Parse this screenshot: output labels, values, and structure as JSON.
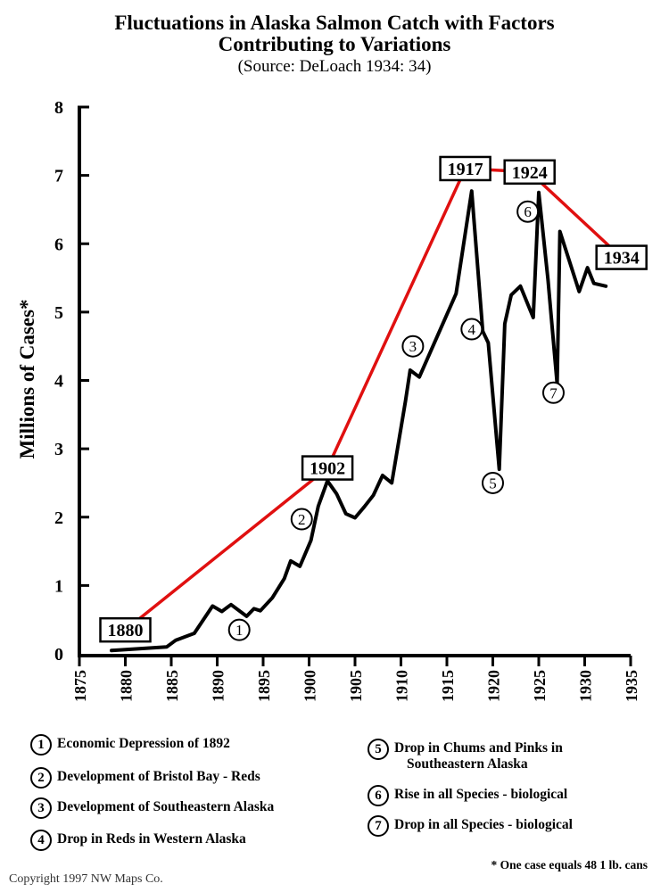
{
  "header": {
    "title_line1": "Fluctuations in Alaska Salmon Catch with Factors",
    "title_line2": "Contributing to Variations",
    "subtitle": "(Source: DeLoach 1934: 34)"
  },
  "chart_data": {
    "type": "line",
    "ylabel": "Millions of Cases*",
    "xlim": [
      1875,
      1935
    ],
    "ylim": [
      0,
      8
    ],
    "x_ticks": [
      1875,
      1880,
      1885,
      1890,
      1895,
      1900,
      1905,
      1910,
      1915,
      1920,
      1925,
      1930,
      1935
    ],
    "y_ticks": [
      0,
      1,
      2,
      3,
      4,
      5,
      6,
      7,
      8
    ],
    "series": [
      {
        "color": "#000000",
        "points": [
          [
            1878.5,
            0.05
          ],
          [
            1884.5,
            0.1
          ],
          [
            1885.5,
            0.2
          ],
          [
            1887.5,
            0.3
          ],
          [
            1889.5,
            0.7
          ],
          [
            1890.5,
            0.62
          ],
          [
            1891.5,
            0.72
          ],
          [
            1893.2,
            0.55
          ],
          [
            1894,
            0.66
          ],
          [
            1894.7,
            0.63
          ],
          [
            1896,
            0.82
          ],
          [
            1897.3,
            1.1
          ],
          [
            1898,
            1.36
          ],
          [
            1899,
            1.28
          ],
          [
            1900.2,
            1.66
          ],
          [
            1901,
            2.16
          ],
          [
            1902,
            2.53
          ],
          [
            1903,
            2.34
          ],
          [
            1904,
            2.05
          ],
          [
            1905,
            1.99
          ],
          [
            1906,
            2.15
          ],
          [
            1907,
            2.32
          ],
          [
            1908,
            2.61
          ],
          [
            1909,
            2.5
          ],
          [
            1910.5,
            3.7
          ],
          [
            1911,
            4.15
          ],
          [
            1912,
            4.05
          ],
          [
            1916,
            5.27
          ],
          [
            1917.7,
            6.77
          ],
          [
            1918.9,
            4.72
          ],
          [
            1919.5,
            4.55
          ],
          [
            1920.7,
            2.7
          ],
          [
            1921.3,
            4.83
          ],
          [
            1922,
            5.25
          ],
          [
            1923,
            5.38
          ],
          [
            1924.4,
            4.92
          ],
          [
            1925,
            6.75
          ],
          [
            1926,
            5.48
          ],
          [
            1927,
            3.95
          ],
          [
            1927.3,
            6.18
          ],
          [
            1929.4,
            5.3
          ],
          [
            1930.3,
            5.65
          ],
          [
            1931,
            5.42
          ],
          [
            1932.3,
            5.38
          ]
        ]
      },
      {
        "color": "#e01010",
        "points": [
          [
            1880,
            0.35
          ],
          [
            1902,
            2.72
          ],
          [
            1917,
            7.1
          ],
          [
            1924,
            7.05
          ],
          [
            1934,
            5.8
          ]
        ]
      }
    ],
    "year_labels": [
      {
        "text": "1880",
        "x": 1880,
        "y": 0.35
      },
      {
        "text": "1902",
        "x": 1902,
        "y": 2.72
      },
      {
        "text": "1917",
        "x": 1917,
        "y": 7.1
      },
      {
        "text": "1924",
        "x": 1924,
        "y": 7.05
      },
      {
        "text": "1934",
        "x": 1934,
        "y": 5.8
      }
    ],
    "factor_markers": [
      {
        "num": "1",
        "x": 1892.4,
        "y": 0.35
      },
      {
        "num": "2",
        "x": 1899.2,
        "y": 1.97
      },
      {
        "num": "3",
        "x": 1911.3,
        "y": 4.5
      },
      {
        "num": "4",
        "x": 1917.7,
        "y": 4.75
      },
      {
        "num": "5",
        "x": 1920,
        "y": 2.5
      },
      {
        "num": "6",
        "x": 1923.8,
        "y": 6.47
      },
      {
        "num": "7",
        "x": 1926.6,
        "y": 3.82
      }
    ]
  },
  "legend": {
    "items": [
      {
        "num": "1",
        "text": "Economic Depression of 1892"
      },
      {
        "num": "2",
        "text": "Development of Bristol Bay - Reds"
      },
      {
        "num": "3",
        "text": "Development of Southeastern Alaska"
      },
      {
        "num": "4",
        "text": "Drop in Reds in Western Alaska"
      },
      {
        "num": "5",
        "text": "Drop in Chums and Pinks in",
        "text2": "Southeastern Alaska"
      },
      {
        "num": "6",
        "text": "Rise in all Species - biological"
      },
      {
        "num": "7",
        "text": "Drop in all Species - biological"
      }
    ]
  },
  "footnote": "* One case equals 48 1 lb. cans",
  "copyright": "Copyright 1997 NW Maps Co."
}
